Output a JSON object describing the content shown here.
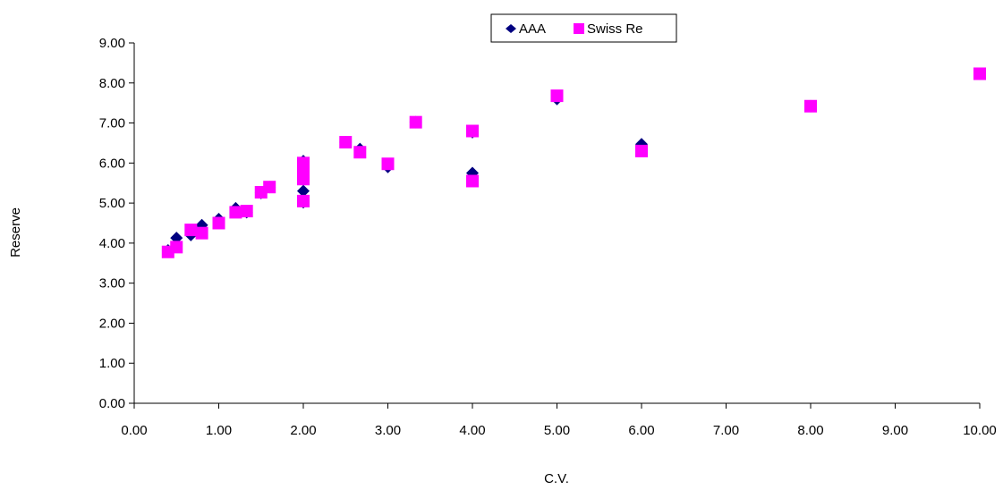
{
  "chart_data": {
    "type": "scatter",
    "title": "",
    "xlabel": "C.V.",
    "ylabel": "Reserve",
    "xlim": [
      0,
      10
    ],
    "ylim": [
      0,
      9
    ],
    "x_ticks": [
      "0.00",
      "1.00",
      "2.00",
      "3.00",
      "4.00",
      "5.00",
      "6.00",
      "7.00",
      "8.00",
      "9.00",
      "10.00"
    ],
    "y_ticks": [
      "0.00",
      "1.00",
      "2.00",
      "3.00",
      "4.00",
      "5.00",
      "6.00",
      "7.00",
      "8.00",
      "9.00"
    ],
    "grid": false,
    "legend_position": "top-center",
    "series": [
      {
        "name": "AAA",
        "marker": "diamond",
        "color": "#000080",
        "x": [
          0.4,
          0.5,
          0.67,
          0.8,
          1.0,
          1.2,
          1.33,
          1.5,
          1.6,
          2.0,
          2.0,
          2.0,
          2.0,
          2.5,
          2.67,
          3.0,
          3.33,
          4.0,
          4.0,
          5.0,
          6.0,
          8.0,
          10.0
        ],
        "y": [
          3.82,
          4.13,
          4.2,
          4.45,
          4.6,
          4.87,
          4.77,
          5.25,
          5.4,
          6.05,
          5.3,
          5.02,
          5.85,
          6.52,
          6.35,
          5.9,
          7.02,
          5.75,
          6.77,
          7.6,
          6.47,
          7.42,
          8.23
        ]
      },
      {
        "name": "Swiss Re",
        "marker": "square",
        "color": "#FF00FF",
        "x": [
          0.4,
          0.5,
          0.67,
          0.8,
          1.0,
          1.2,
          1.33,
          1.5,
          1.6,
          2.0,
          2.0,
          2.0,
          2.0,
          2.5,
          2.67,
          3.0,
          3.33,
          4.0,
          4.0,
          5.0,
          6.0,
          8.0,
          10.0
        ],
        "y": [
          3.78,
          3.9,
          4.33,
          4.25,
          4.5,
          4.77,
          4.8,
          5.27,
          5.4,
          6.0,
          5.6,
          5.05,
          5.8,
          6.52,
          6.27,
          5.98,
          7.02,
          5.55,
          6.8,
          7.68,
          6.3,
          7.42,
          8.23
        ]
      }
    ]
  }
}
